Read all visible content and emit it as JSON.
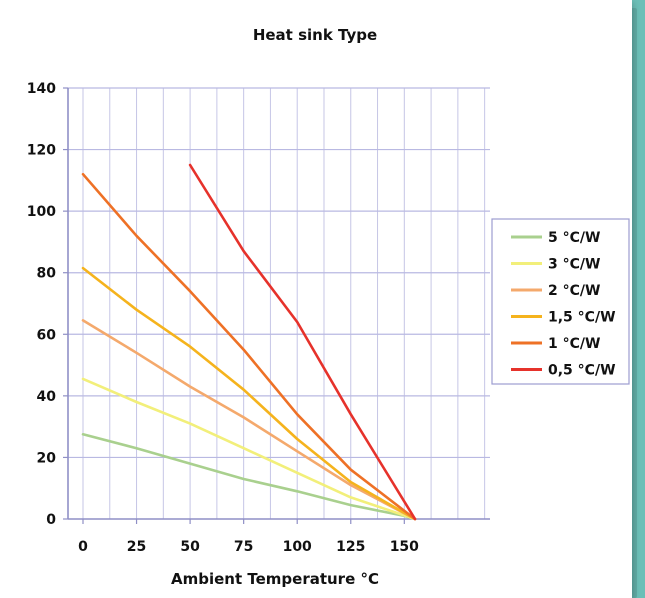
{
  "chart_data": {
    "type": "line",
    "title": "Heat sink Type",
    "xlabel": "Ambient Temperature °C",
    "ylabel": "",
    "xlim": [
      -7,
      190
    ],
    "ylim": [
      0,
      140
    ],
    "x_ticks": [
      0,
      25,
      50,
      75,
      100,
      125,
      150
    ],
    "y_ticks": [
      0,
      20,
      40,
      60,
      80,
      100,
      120,
      140
    ],
    "x_grid": [
      0,
      12.5,
      25,
      37.5,
      50,
      62.5,
      75,
      87.5,
      100,
      112.5,
      125,
      137.5,
      150,
      162.5,
      175,
      187.5
    ],
    "grid": true,
    "legend_position": "right",
    "series": [
      {
        "name": "5 °C/W",
        "color": "#a9d08e",
        "points": [
          [
            0,
            27.5
          ],
          [
            25,
            23
          ],
          [
            50,
            18
          ],
          [
            75,
            13
          ],
          [
            100,
            9
          ],
          [
            125,
            4.5
          ],
          [
            150,
            1
          ],
          [
            155,
            0
          ]
        ]
      },
      {
        "name": "3 °C/W",
        "color": "#f2ef7a",
        "points": [
          [
            0,
            45.5
          ],
          [
            25,
            38
          ],
          [
            50,
            31
          ],
          [
            75,
            23
          ],
          [
            100,
            15
          ],
          [
            125,
            7
          ],
          [
            155,
            0
          ]
        ]
      },
      {
        "name": "2 °C/W",
        "color": "#f4a96c",
        "points": [
          [
            0,
            64.5
          ],
          [
            25,
            54
          ],
          [
            50,
            43
          ],
          [
            75,
            33
          ],
          [
            100,
            22
          ],
          [
            125,
            11
          ],
          [
            155,
            0
          ]
        ]
      },
      {
        "name": "1,5 °C/W",
        "color": "#f5b31d",
        "points": [
          [
            0,
            81.5
          ],
          [
            25,
            68
          ],
          [
            50,
            56
          ],
          [
            75,
            42
          ],
          [
            100,
            26
          ],
          [
            125,
            12
          ],
          [
            155,
            0
          ]
        ]
      },
      {
        "name": "1 °C/W",
        "color": "#ee7126",
        "points": [
          [
            0,
            112
          ],
          [
            25,
            92
          ],
          [
            50,
            74
          ],
          [
            75,
            55
          ],
          [
            100,
            34
          ],
          [
            125,
            16
          ],
          [
            155,
            0
          ]
        ]
      },
      {
        "name": "0,5 °C/W",
        "color": "#e6322b",
        "points": [
          [
            50,
            115
          ],
          [
            75,
            87
          ],
          [
            100,
            64
          ],
          [
            125,
            34
          ],
          [
            155,
            0
          ]
        ]
      }
    ]
  }
}
